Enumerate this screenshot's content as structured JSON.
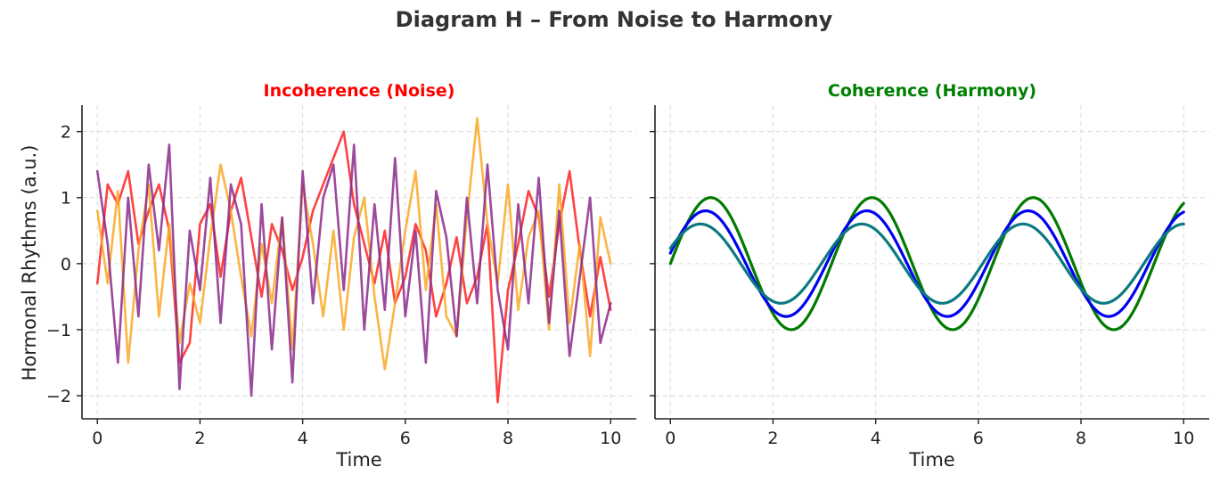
{
  "suptitle": "Diagram H – From Noise to Harmony",
  "chart_data": [
    {
      "type": "line",
      "title": "Incoherence (Noise)",
      "title_color": "#ff0000",
      "xlabel": "Time",
      "ylabel": "Hormonal Rhythms (a.u.)",
      "xlim": [
        -0.3,
        10.5
      ],
      "ylim": [
        -2.35,
        2.4
      ],
      "xticks": [
        0,
        2,
        4,
        6,
        8,
        10
      ],
      "yticks": [
        -2,
        -1,
        0,
        1,
        2
      ],
      "ytick_labels": [
        "−2",
        "−1",
        "0",
        "1",
        "2"
      ],
      "grid": true,
      "x": [
        0,
        0.2,
        0.4,
        0.6,
        0.8,
        1.0,
        1.2,
        1.4,
        1.6,
        1.8,
        2.0,
        2.2,
        2.4,
        2.6,
        2.8,
        3.0,
        3.2,
        3.4,
        3.6,
        3.8,
        4.0,
        4.2,
        4.4,
        4.6,
        4.8,
        5.0,
        5.2,
        5.4,
        5.6,
        5.8,
        6.0,
        6.2,
        6.4,
        6.6,
        6.8,
        7.0,
        7.2,
        7.4,
        7.6,
        7.8,
        8.0,
        8.2,
        8.4,
        8.6,
        8.8,
        9.0,
        9.2,
        9.4,
        9.6,
        9.8,
        10.0
      ],
      "series": [
        {
          "color": "#ff2222",
          "values": [
            -0.3,
            1.2,
            0.9,
            1.4,
            0.3,
            0.8,
            1.2,
            0.5,
            -1.5,
            -1.2,
            0.6,
            0.9,
            -0.2,
            0.8,
            1.3,
            0.4,
            -0.5,
            0.6,
            0.2,
            -0.4,
            0.1,
            0.8,
            1.2,
            1.6,
            2.0,
            0.9,
            0.3,
            -0.3,
            0.5,
            -0.6,
            -0.2,
            0.6,
            0.2,
            -0.8,
            -0.3,
            0.4,
            -0.6,
            -0.2,
            0.6,
            -2.1,
            -0.4,
            0.3,
            1.1,
            0.7,
            -0.5,
            0.6,
            1.4,
            0.2,
            -0.8,
            0.1,
            -0.7
          ]
        },
        {
          "color": "#f9a825",
          "values": [
            0.8,
            -0.3,
            1.1,
            -1.5,
            0.2,
            1.2,
            -0.8,
            0.6,
            -1.2,
            -0.3,
            -0.9,
            0.4,
            1.5,
            0.8,
            -0.2,
            -1.1,
            0.3,
            -0.6,
            0.7,
            -1.3,
            1.2,
            0.3,
            -0.8,
            0.5,
            -1.0,
            0.4,
            1.0,
            -0.5,
            -1.6,
            -0.6,
            0.5,
            1.4,
            -0.4,
            0.9,
            -0.8,
            -1.1,
            0.7,
            2.2,
            0.6,
            -0.3,
            1.2,
            -0.7,
            0.4,
            0.8,
            -1.0,
            1.2,
            -0.9,
            0.3,
            -1.4,
            0.7,
            0.0
          ]
        },
        {
          "color": "#8b2a8b",
          "values": [
            1.4,
            0.3,
            -1.5,
            1.0,
            -0.8,
            1.5,
            0.2,
            1.8,
            -1.9,
            0.5,
            -0.4,
            1.3,
            -0.9,
            1.2,
            0.6,
            -2.0,
            0.9,
            -1.3,
            0.7,
            -1.8,
            1.4,
            -0.6,
            1.0,
            1.5,
            -0.4,
            1.8,
            -1.0,
            0.9,
            -0.7,
            1.6,
            -0.8,
            0.5,
            -1.5,
            1.1,
            0.4,
            -1.1,
            1.0,
            -0.6,
            1.5,
            -0.4,
            -1.3,
            0.9,
            -0.6,
            1.3,
            -0.9,
            0.8,
            -1.4,
            -0.2,
            1.0,
            -1.2,
            -0.6
          ]
        }
      ]
    },
    {
      "type": "line",
      "title": "Coherence (Harmony)",
      "title_color": "#008000",
      "xlabel": "Time",
      "ylabel": "",
      "xlim": [
        -0.3,
        10.5
      ],
      "ylim": [
        -2.35,
        2.4
      ],
      "xticks": [
        0,
        2,
        4,
        6,
        8,
        10
      ],
      "yticks": [
        -2,
        -1,
        0,
        1,
        2
      ],
      "grid": true,
      "function": "amplitude * sin(2 * x + phase)",
      "x_range": [
        0,
        10
      ],
      "series": [
        {
          "color": "#007a00",
          "amplitude": 1.0,
          "phase": 0.0
        },
        {
          "color": "#0000ee",
          "amplitude": 0.8,
          "phase": 0.2
        },
        {
          "color": "#0b7a80",
          "amplitude": 0.6,
          "phase": 0.4
        }
      ]
    }
  ]
}
